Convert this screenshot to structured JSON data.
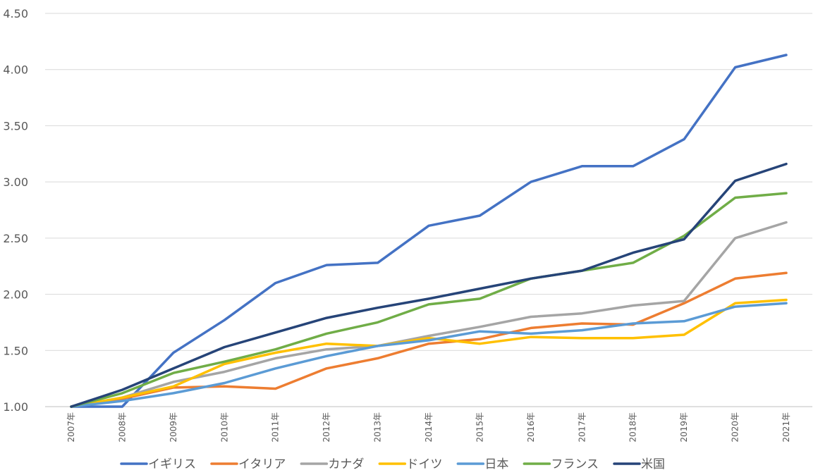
{
  "chart_data": {
    "type": "line",
    "title": "",
    "xlabel": "",
    "ylabel": "",
    "ylim": [
      1.0,
      4.5
    ],
    "y_ticks": [
      "1.00",
      "1.50",
      "2.00",
      "2.50",
      "3.00",
      "3.50",
      "4.00",
      "4.50"
    ],
    "grid": "horizontal",
    "legend_position": "bottom",
    "categories": [
      "2007年",
      "2008年",
      "2009年",
      "2010年",
      "2011年",
      "2012年",
      "2013年",
      "2014年",
      "2015年",
      "2016年",
      "2017年",
      "2018年",
      "2019年",
      "2020年",
      "2021年"
    ],
    "series": [
      {
        "name": "イギリス",
        "color": "#4472c4",
        "values": [
          1.0,
          0.98,
          1.48,
          1.77,
          2.1,
          2.26,
          2.28,
          2.61,
          2.7,
          3.0,
          3.14,
          3.14,
          3.38,
          4.02,
          4.13
        ]
      },
      {
        "name": "イタリア",
        "color": "#ed7d31",
        "values": [
          1.0,
          1.07,
          1.17,
          1.18,
          1.16,
          1.34,
          1.43,
          1.56,
          1.6,
          1.7,
          1.74,
          1.73,
          1.92,
          2.14,
          2.19
        ]
      },
      {
        "name": "カナダ",
        "color": "#a5a5a5",
        "values": [
          1.0,
          1.08,
          1.22,
          1.31,
          1.43,
          1.51,
          1.54,
          1.63,
          1.71,
          1.8,
          1.83,
          1.9,
          1.94,
          2.5,
          2.64
        ]
      },
      {
        "name": "ドイツ",
        "color": "#ffc000",
        "values": [
          1.0,
          1.08,
          1.18,
          1.38,
          1.48,
          1.56,
          1.54,
          1.61,
          1.56,
          1.62,
          1.61,
          1.61,
          1.64,
          1.92,
          1.95
        ]
      },
      {
        "name": "日本",
        "color": "#5b9bd5",
        "values": [
          1.0,
          1.05,
          1.12,
          1.21,
          1.34,
          1.45,
          1.54,
          1.59,
          1.67,
          1.65,
          1.68,
          1.74,
          1.76,
          1.89,
          1.92
        ]
      },
      {
        "name": "フランス",
        "color": "#70ad47",
        "values": [
          1.0,
          1.12,
          1.3,
          1.4,
          1.51,
          1.65,
          1.75,
          1.91,
          1.96,
          2.14,
          2.21,
          2.28,
          2.52,
          2.86,
          2.9
        ]
      },
      {
        "name": "米国",
        "color": "#264478",
        "values": [
          1.0,
          1.15,
          1.34,
          1.53,
          1.66,
          1.79,
          1.88,
          1.96,
          2.05,
          2.14,
          2.21,
          2.37,
          2.49,
          3.01,
          3.16
        ]
      }
    ]
  }
}
